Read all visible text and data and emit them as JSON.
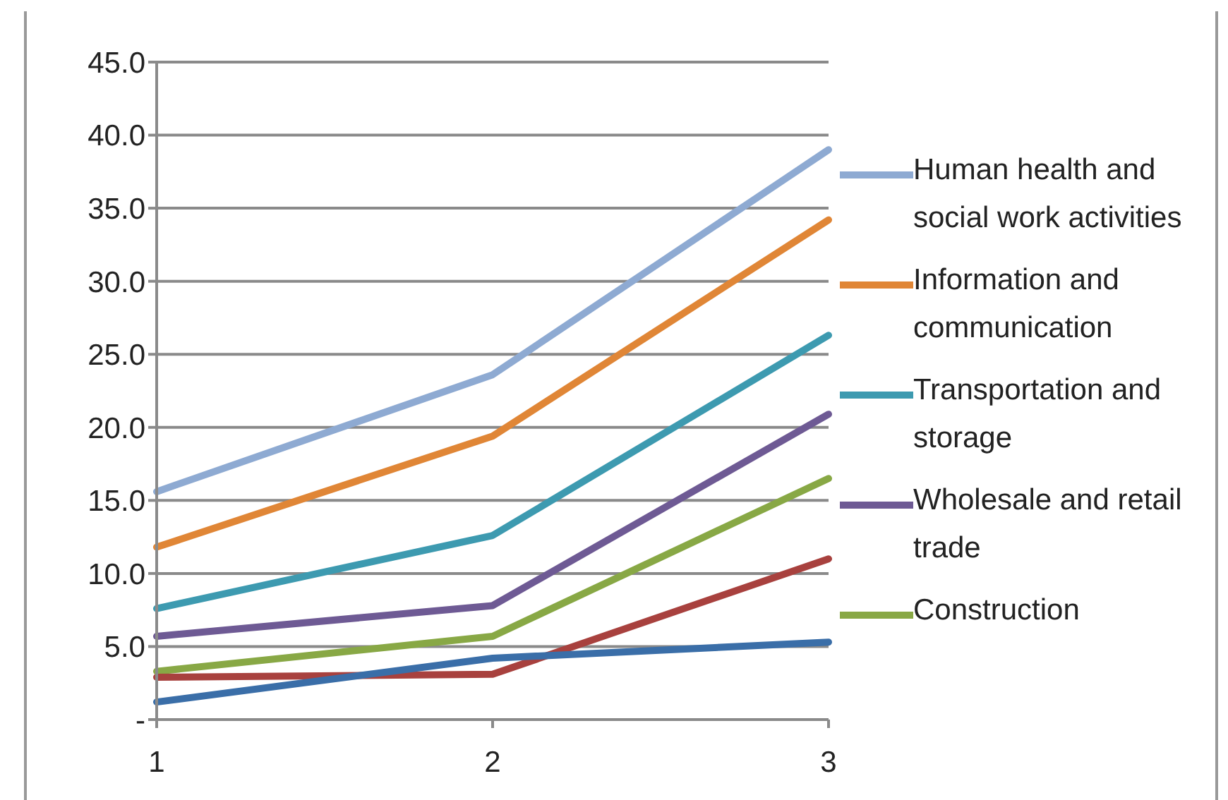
{
  "chart_data": {
    "type": "line",
    "categories": [
      "1",
      "2",
      "3"
    ],
    "series": [
      {
        "name": "Human health and social work activities",
        "color": "#8eaad2",
        "values": [
          15.6,
          23.6,
          39.0
        ]
      },
      {
        "name": "Information and communication",
        "color": "#e08636",
        "values": [
          11.8,
          19.4,
          34.2
        ]
      },
      {
        "name": "Transportation and storage",
        "color": "#3d9ab0",
        "values": [
          7.6,
          12.6,
          26.3
        ]
      },
      {
        "name": "Wholesale and retail trade",
        "color": "#6e5a94",
        "values": [
          5.7,
          7.8,
          20.9
        ]
      },
      {
        "name": "Construction",
        "color": "#88a845",
        "values": [
          3.3,
          5.7,
          16.5
        ]
      },
      {
        "color": "#a8413e",
        "values": [
          2.9,
          3.1,
          11.0
        ]
      },
      {
        "color": "#3a6ea8",
        "values": [
          1.2,
          4.2,
          5.3
        ]
      }
    ],
    "ylim": [
      0,
      45
    ],
    "yticks": [
      {
        "value": 0,
        "label": "-"
      },
      {
        "value": 5,
        "label": "5.0"
      },
      {
        "value": 10,
        "label": "10.0"
      },
      {
        "value": 15,
        "label": "15.0"
      },
      {
        "value": 20,
        "label": "20.0"
      },
      {
        "value": 25,
        "label": "25.0"
      },
      {
        "value": 30,
        "label": "30.0"
      },
      {
        "value": 35,
        "label": "35.0"
      },
      {
        "value": 40,
        "label": "40.0"
      },
      {
        "value": 45,
        "label": "45.0"
      }
    ],
    "grid": "y",
    "legend": "right",
    "marker": "none",
    "line_style": "solid"
  }
}
